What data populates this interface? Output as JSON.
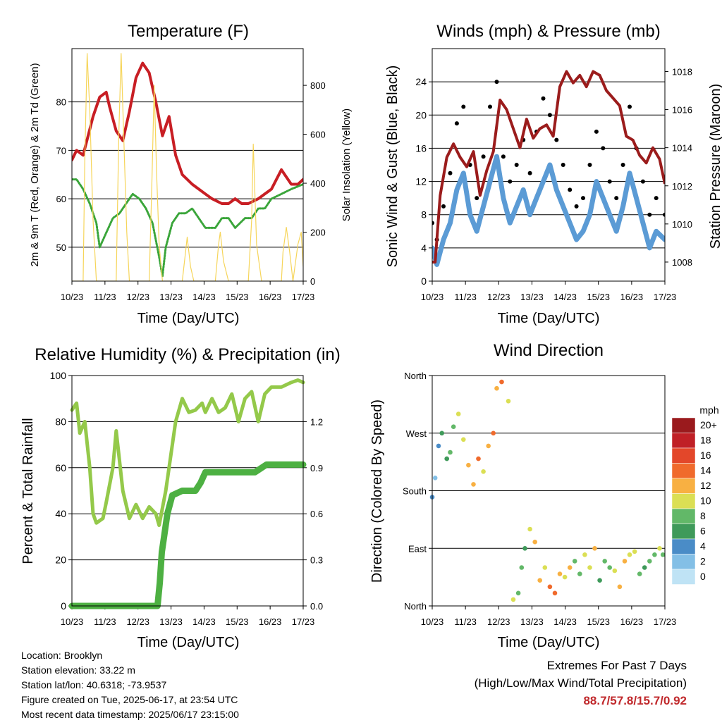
{
  "panels": {
    "temperature": {
      "title": "Temperature (F)",
      "xlabel": "Time (Day/UTC)",
      "ylabel_left": "2m & 9m T (Red, Orange) & 2m Td (Green)",
      "ylabel_right": "Solar Insolation (Yellow)"
    },
    "winds": {
      "title": "Winds (mph) & Pressure (mb)",
      "xlabel": "Time (Day/UTC)",
      "ylabel_left": "Sonic Wind & Gust (Blue, Black)",
      "ylabel_right": "Station Pressure (Maroon)"
    },
    "humidity": {
      "title": "Relative Humidity (%) & Precipitation (in)",
      "xlabel": "Time (Day/UTC)",
      "ylabel_left": "Percent & Total Rainfall"
    },
    "direction": {
      "title": "Wind Direction",
      "xlabel": "Time (Day/UTC)",
      "ylabel_left": "Direction (Colored By Speed)",
      "legend_title": "mph"
    }
  },
  "station_info": {
    "location": "Location: Brooklyn",
    "elevation": "Station elevation: 33.22 m",
    "latlon": "Station lat/lon: 40.6318; -73.9537",
    "created": "Figure created on Tue, 2025-06-17, at 23:54 UTC",
    "timestamp": "Most recent data timestamp: 2025/06/17 23:15:00"
  },
  "extremes": {
    "heading": "Extremes For Past 7 Days",
    "subheading": "(High/Low/Max Wind/Total Precipitation)",
    "values": "88.7/57.8/15.7/0.92",
    "value_color": "#c0282b"
  },
  "colors": {
    "temp_2m": "#c81e24",
    "temp_9m": "#f08a2c",
    "dewpoint": "#3aa53a",
    "solar": "#f6d55a",
    "wind": "#5b9bd5",
    "gust": "#000000",
    "pressure": "#9b1c1c",
    "rh": "#94c94a",
    "precip": "#4db042"
  },
  "chart_data": [
    {
      "type": "line",
      "title": "Temperature (F)",
      "xlabel": "Time (Day/UTC)",
      "ylabel": "2m & 9m T (Red, Orange) & 2m Td (Green)",
      "y2label": "Solar Insolation (Yellow)",
      "x_ticks": [
        "10/23",
        "11/23",
        "12/23",
        "13/23",
        "14/23",
        "15/23",
        "16/23",
        "17/23"
      ],
      "xlim": [
        10.96,
        17.96
      ],
      "ylim": [
        43,
        91
      ],
      "y_ticks": [
        50,
        60,
        70,
        80
      ],
      "y2lim": [
        0,
        950
      ],
      "y2_ticks": [
        0,
        200,
        400,
        600,
        800
      ],
      "grid": "horizontal",
      "series": [
        {
          "key": "temp_2m",
          "axis": "left",
          "x": [
            10.96,
            11.1,
            11.3,
            11.6,
            11.8,
            12.0,
            12.1,
            12.3,
            12.5,
            12.7,
            12.9,
            13.1,
            13.3,
            13.5,
            13.7,
            13.9,
            14.1,
            14.3,
            14.6,
            14.8,
            15.0,
            15.2,
            15.5,
            15.7,
            15.9,
            16.1,
            16.3,
            16.6,
            16.8,
            17.0,
            17.3,
            17.6,
            17.8,
            17.96
          ],
          "y": [
            68,
            70,
            69,
            77,
            81,
            82,
            79,
            74,
            72,
            78,
            85,
            88,
            86,
            80,
            73,
            77,
            69,
            65,
            63,
            62,
            61,
            60,
            59,
            59,
            60,
            59,
            59,
            60,
            61,
            62,
            66,
            63,
            63,
            64
          ]
        },
        {
          "key": "dewpoint",
          "axis": "left",
          "x": [
            10.96,
            11.1,
            11.3,
            11.5,
            11.7,
            11.8,
            12.0,
            12.2,
            12.4,
            12.6,
            12.8,
            13.0,
            13.2,
            13.4,
            13.6,
            13.7,
            13.8,
            14.0,
            14.2,
            14.4,
            14.6,
            14.8,
            15.0,
            15.3,
            15.5,
            15.7,
            15.9,
            16.2,
            16.4,
            16.6,
            16.8,
            17.0,
            17.3,
            17.6,
            17.96
          ],
          "y": [
            64,
            64,
            62,
            59,
            55,
            50,
            53,
            56,
            57,
            59,
            61,
            60,
            58,
            55,
            48,
            44,
            50,
            55,
            57,
            57,
            58,
            56,
            54,
            54,
            56,
            56,
            54,
            56,
            56,
            58,
            58,
            60,
            61,
            62,
            63
          ]
        },
        {
          "key": "solar",
          "axis": "right",
          "x": [
            10.96,
            11.3,
            11.35,
            11.42,
            11.5,
            11.6,
            11.7,
            12.3,
            12.38,
            12.45,
            12.55,
            12.62,
            12.7,
            13.3,
            13.38,
            13.45,
            13.52,
            13.6,
            13.7,
            14.3,
            14.4,
            14.45,
            14.55,
            14.65,
            15.3,
            15.4,
            15.45,
            15.55,
            15.7,
            16.3,
            16.4,
            16.45,
            16.55,
            16.7,
            17.3,
            17.35,
            17.45,
            17.55,
            17.65,
            17.8,
            17.9,
            17.96
          ],
          "y": [
            0,
            0,
            500,
            930,
            700,
            250,
            0,
            0,
            600,
            930,
            500,
            200,
            0,
            0,
            400,
            800,
            450,
            150,
            0,
            0,
            120,
            180,
            60,
            0,
            0,
            150,
            200,
            80,
            0,
            0,
            250,
            560,
            150,
            0,
            0,
            120,
            220,
            120,
            0,
            150,
            200,
            60
          ]
        }
      ]
    },
    {
      "type": "scatter",
      "title": "Winds (mph) & Pressure (mb)",
      "xlabel": "Time (Day/UTC)",
      "ylabel": "Sonic Wind & Gust (Blue, Black)",
      "y2label": "Station Pressure (Maroon)",
      "x_ticks": [
        "10/23",
        "11/23",
        "12/23",
        "13/23",
        "14/23",
        "15/23",
        "16/23",
        "17/23"
      ],
      "xlim": [
        10.96,
        17.96
      ],
      "ylim": [
        0,
        28
      ],
      "y_ticks": [
        0,
        4,
        8,
        12,
        16,
        20,
        24
      ],
      "y2lim": [
        1007,
        1019.2
      ],
      "y2_ticks": [
        1008,
        1010,
        1012,
        1014,
        1016,
        1018
      ],
      "grid": "horizontal",
      "series": [
        {
          "key": "wind",
          "axis": "left",
          "x": [
            10.96,
            11.1,
            11.3,
            11.5,
            11.7,
            11.9,
            12.1,
            12.3,
            12.5,
            12.7,
            12.9,
            13.1,
            13.3,
            13.5,
            13.7,
            13.9,
            14.1,
            14.3,
            14.5,
            14.7,
            14.9,
            15.1,
            15.3,
            15.5,
            15.7,
            15.9,
            16.1,
            16.3,
            16.5,
            16.7,
            16.9,
            17.1,
            17.3,
            17.5,
            17.7,
            17.96
          ],
          "y": [
            4,
            2,
            5,
            7,
            11,
            13,
            8,
            6,
            9,
            12,
            15,
            10,
            7,
            9,
            11,
            8,
            10,
            12,
            14,
            11,
            9,
            7,
            5,
            6,
            8,
            12,
            10,
            8,
            6,
            9,
            13,
            10,
            7,
            4,
            6,
            5
          ]
        },
        {
          "key": "gust",
          "axis": "left",
          "x": [
            10.96,
            11.1,
            11.3,
            11.5,
            11.7,
            11.9,
            12.1,
            12.3,
            12.5,
            12.7,
            12.9,
            13.1,
            13.3,
            13.5,
            13.7,
            13.9,
            14.1,
            14.3,
            14.5,
            14.7,
            14.9,
            15.1,
            15.3,
            15.5,
            15.7,
            15.9,
            16.1,
            16.3,
            16.5,
            16.7,
            16.9,
            17.1,
            17.3,
            17.5,
            17.7,
            17.96
          ],
          "y": [
            7,
            5,
            9,
            13,
            19,
            21,
            14,
            10,
            15,
            21,
            24,
            15,
            12,
            14,
            17,
            13,
            18,
            22,
            20,
            17,
            14,
            11,
            9,
            10,
            14,
            18,
            16,
            12,
            10,
            14,
            21,
            16,
            12,
            8,
            10,
            8
          ]
        },
        {
          "key": "pressure",
          "axis": "right",
          "x": [
            10.96,
            11.05,
            11.2,
            11.4,
            11.6,
            11.8,
            12.0,
            12.2,
            12.4,
            12.6,
            12.8,
            13.0,
            13.2,
            13.4,
            13.6,
            13.8,
            14.0,
            14.2,
            14.4,
            14.6,
            14.8,
            15.0,
            15.2,
            15.4,
            15.6,
            15.8,
            16.0,
            16.2,
            16.4,
            16.6,
            16.8,
            17.0,
            17.2,
            17.4,
            17.6,
            17.8,
            17.96
          ],
          "y": [
            1008,
            1008,
            1011.5,
            1013.5,
            1014.2,
            1013.5,
            1013.0,
            1013.8,
            1011.5,
            1012.8,
            1013.8,
            1016.5,
            1016.0,
            1015.0,
            1014.0,
            1015.5,
            1014.5,
            1015.0,
            1015.2,
            1014.6,
            1017.2,
            1018.0,
            1017.4,
            1017.8,
            1017.2,
            1018.0,
            1017.8,
            1017.0,
            1016.6,
            1016.2,
            1014.6,
            1014.4,
            1013.6,
            1013.2,
            1014.0,
            1013.4,
            1012.1
          ]
        }
      ]
    },
    {
      "type": "line",
      "title": "Relative Humidity (%) & Precipitation (in)",
      "xlabel": "Time (Day/UTC)",
      "ylabel": "Percent & Total Rainfall",
      "x_ticks": [
        "10/23",
        "11/23",
        "12/23",
        "13/23",
        "14/23",
        "15/23",
        "16/23",
        "17/23"
      ],
      "xlim": [
        10.96,
        17.96
      ],
      "ylim": [
        0,
        100
      ],
      "y_ticks": [
        0,
        20,
        40,
        60,
        80,
        100
      ],
      "y2lim": [
        0,
        1.5
      ],
      "y2_ticks": [
        0.0,
        0.3,
        0.6,
        0.9,
        1.2
      ],
      "grid": "horizontal",
      "series": [
        {
          "key": "rh",
          "axis": "left",
          "x": [
            10.96,
            11.1,
            11.2,
            11.35,
            11.5,
            11.6,
            11.7,
            11.9,
            12.0,
            12.2,
            12.3,
            12.5,
            12.7,
            12.9,
            13.1,
            13.3,
            13.5,
            13.6,
            13.8,
            13.95,
            14.1,
            14.3,
            14.5,
            14.7,
            14.9,
            15.0,
            15.2,
            15.4,
            15.6,
            15.8,
            16.0,
            16.2,
            16.4,
            16.6,
            16.8,
            17.0,
            17.3,
            17.6,
            17.8,
            17.96
          ],
          "y": [
            85,
            88,
            75,
            80,
            60,
            40,
            36,
            38,
            45,
            60,
            76,
            50,
            38,
            44,
            38,
            43,
            40,
            35,
            50,
            65,
            80,
            90,
            84,
            85,
            88,
            84,
            90,
            84,
            86,
            92,
            80,
            90,
            93,
            80,
            92,
            95,
            95,
            97,
            98,
            97
          ]
        },
        {
          "key": "precip",
          "axis": "right",
          "x": [
            10.96,
            12.0,
            13.0,
            13.55,
            13.62,
            13.68,
            13.75,
            13.85,
            14.0,
            14.3,
            14.5,
            14.7,
            14.85,
            15.0,
            15.5,
            15.9,
            16.0,
            16.5,
            16.85,
            17.0,
            17.5,
            17.96
          ],
          "y": [
            0,
            0,
            0,
            0,
            0.15,
            0.35,
            0.45,
            0.6,
            0.72,
            0.75,
            0.75,
            0.75,
            0.8,
            0.87,
            0.87,
            0.87,
            0.87,
            0.87,
            0.92,
            0.92,
            0.92,
            0.92
          ]
        }
      ]
    },
    {
      "type": "scatter",
      "title": "Wind Direction",
      "xlabel": "Time (Day/UTC)",
      "ylabel": "Direction (Colored By Speed)",
      "x_ticks": [
        "10/23",
        "11/23",
        "12/23",
        "13/23",
        "14/23",
        "15/23",
        "16/23",
        "17/23"
      ],
      "xlim": [
        10.96,
        17.96
      ],
      "ylim": [
        0,
        360
      ],
      "y_ticks": [
        "North",
        "East",
        "South",
        "West",
        "North"
      ],
      "grid": "horizontal",
      "colorbar": {
        "title": "mph",
        "labels": [
          "0",
          "2",
          "4",
          "6",
          "8",
          "10",
          "12",
          "14",
          "16",
          "18",
          "20+"
        ],
        "colors": [
          "#bfe3f5",
          "#83bfe6",
          "#4a8cc7",
          "#3f9a5a",
          "#62b868",
          "#dbdf54",
          "#f8b042",
          "#f06a2c",
          "#e3472a",
          "#c02026",
          "#9a1a1d"
        ]
      },
      "series": [
        {
          "name": "direction",
          "x": [
            10.96,
            11.05,
            11.15,
            11.25,
            11.4,
            11.5,
            11.6,
            11.75,
            11.9,
            12.05,
            12.2,
            12.35,
            12.5,
            12.65,
            12.8,
            12.9,
            13.05,
            13.25,
            13.4,
            13.55,
            13.65,
            13.75,
            13.9,
            14.05,
            14.2,
            14.35,
            14.5,
            14.65,
            14.8,
            14.95,
            15.1,
            15.25,
            15.4,
            15.55,
            15.7,
            15.85,
            16.0,
            16.15,
            16.3,
            16.45,
            16.6,
            16.75,
            16.9,
            17.05,
            17.2,
            17.35,
            17.5,
            17.65,
            17.8,
            17.9
          ],
          "y": [
            170,
            200,
            250,
            270,
            230,
            240,
            280,
            300,
            260,
            220,
            190,
            230,
            210,
            250,
            270,
            340,
            350,
            320,
            10,
            20,
            60,
            90,
            120,
            100,
            40,
            60,
            30,
            20,
            50,
            45,
            60,
            70,
            50,
            80,
            60,
            90,
            40,
            70,
            60,
            55,
            30,
            70,
            80,
            85,
            50,
            60,
            70,
            80,
            90,
            80
          ],
          "speed": [
            3,
            2,
            4,
            5,
            6,
            7,
            8,
            10,
            9,
            11,
            12,
            13,
            10,
            12,
            14,
            12,
            13,
            10,
            9,
            8,
            7,
            6,
            9,
            11,
            12,
            10,
            13,
            14,
            12,
            10,
            11,
            8,
            7,
            9,
            10,
            12,
            6,
            8,
            7,
            9,
            11,
            12,
            10,
            9,
            8,
            6,
            7,
            8,
            9,
            7
          ]
        }
      ]
    }
  ]
}
